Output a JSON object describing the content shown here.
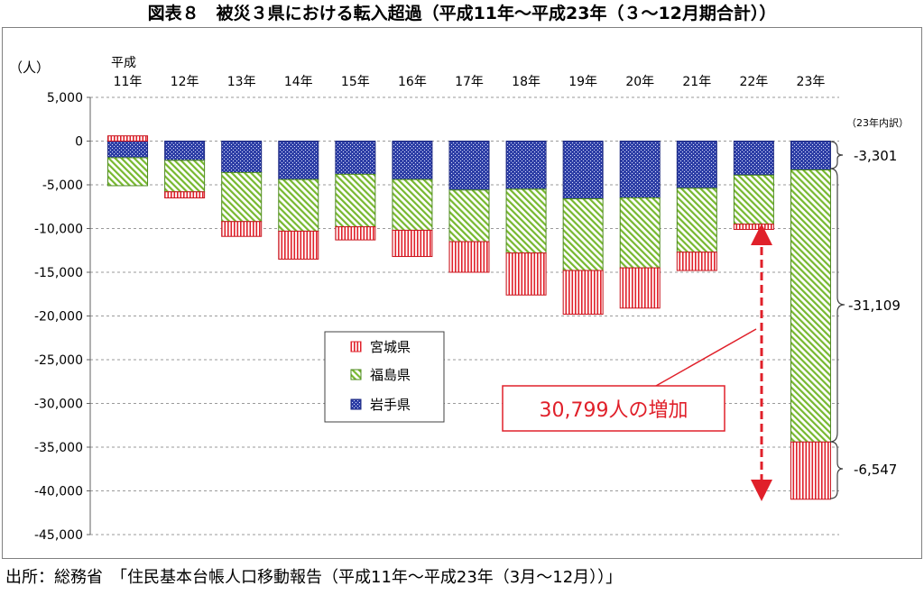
{
  "title": "図表８　被災３県における転入超過（平成11年～平成23年（３～12月期合計））",
  "source": "出所：総務省　「住民基本台帳人口移動報告（平成11年～平成23年（3月～12月））」",
  "chart_data": {
    "type": "bar",
    "stacked": true,
    "unit_label": "（人）",
    "x_prefix": "平成",
    "categories": [
      "11年",
      "12年",
      "13年",
      "14年",
      "15年",
      "16年",
      "17年",
      "18年",
      "19年",
      "20年",
      "21年",
      "22年",
      "23年"
    ],
    "ylim": [
      -45000,
      5000
    ],
    "yticks": [
      5000,
      0,
      -5000,
      -10000,
      -15000,
      -20000,
      -25000,
      -30000,
      -35000,
      -40000,
      -45000
    ],
    "ytick_labels": [
      "5,000",
      "0",
      "-5,000",
      "-10,000",
      "-15,000",
      "-20,000",
      "-25,000",
      "-30,000",
      "-35,000",
      "-40,000",
      "-45,000"
    ],
    "series": [
      {
        "name": "岩手県",
        "color": "#2e3fa6",
        "values": [
          -1900,
          -2200,
          -3600,
          -4400,
          -3800,
          -4400,
          -5600,
          -5500,
          -6600,
          -6500,
          -5400,
          -3900,
          -3301
        ]
      },
      {
        "name": "福島県",
        "color": "#8cc63e",
        "values": [
          -3200,
          -3600,
          -5600,
          -5900,
          -6000,
          -5800,
          -5900,
          -7300,
          -8200,
          -8000,
          -7300,
          -5600,
          -31109
        ]
      },
      {
        "name": "宮城県",
        "color": "#e0202a",
        "values": [
          600,
          -700,
          -1700,
          -3200,
          -1500,
          -3000,
          -3500,
          -4800,
          -5000,
          -4600,
          -2100,
          -600,
          -6547
        ]
      }
    ],
    "annotations": {
      "breakdown_header": "（23年内訳）",
      "breakdown_values": [
        "-3,301",
        "-31,109",
        "-6,547"
      ],
      "increase_callout": "30,799人の増加"
    },
    "legend_position": "center-left"
  }
}
